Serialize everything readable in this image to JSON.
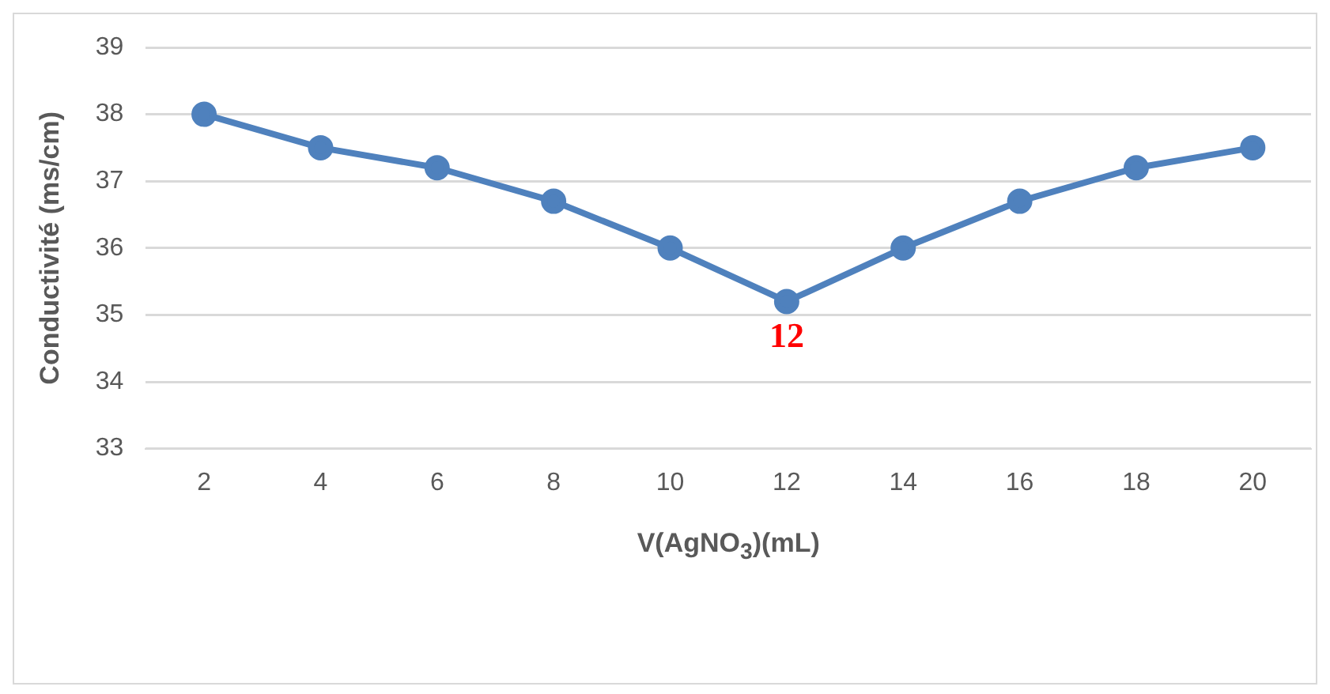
{
  "chart_data": {
    "type": "line",
    "xlabel": "V(AgNO$_{3}$)(mL)",
    "ylabel": "Conductivité (ms/cm)",
    "categories": [
      "2",
      "4",
      "6",
      "8",
      "10",
      "12",
      "14",
      "16",
      "18",
      "20"
    ],
    "series": [
      {
        "color": "#4f81bd",
        "values": [
          38,
          37.5,
          37.2,
          36.7,
          36,
          35.2,
          36,
          36.7,
          37.2,
          37.5
        ]
      }
    ],
    "ylim": [
      33,
      39
    ],
    "yticks": [
      33,
      34,
      35,
      36,
      37,
      38,
      39
    ],
    "grid": "y",
    "legend": false,
    "marker": "circle",
    "line_style": "solid",
    "annotations": [
      {
        "text": "12",
        "x": "12",
        "y": 35.2
      }
    ]
  }
}
